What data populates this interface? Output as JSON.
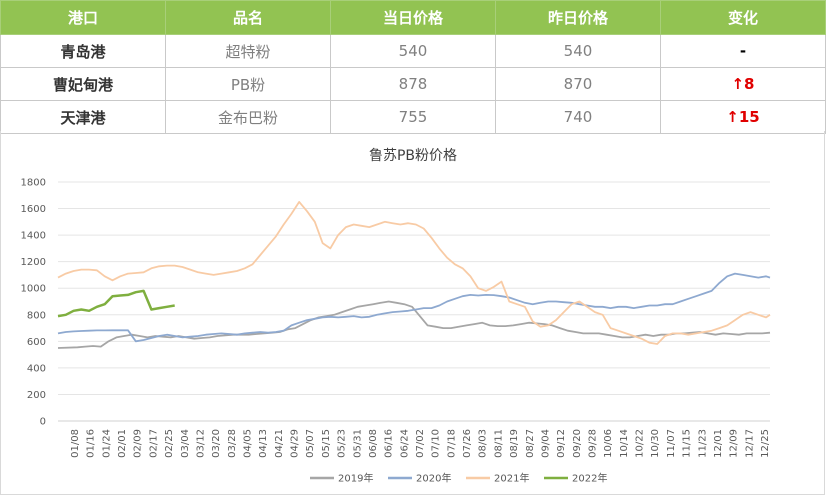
{
  "table": {
    "headers": [
      "港口",
      "品名",
      "当日价格",
      "昨日价格",
      "变化"
    ],
    "rows": [
      {
        "port": "青岛港",
        "product": "超特粉",
        "today": "540",
        "yesterday": "540",
        "change": "-"
      },
      {
        "port": "曹妃甸港",
        "product": "PB粉",
        "today": "878",
        "yesterday": "870",
        "change": "↑8"
      },
      {
        "port": "天津港",
        "product": "金布巴粉",
        "today": "755",
        "yesterday": "740",
        "change": "↑15"
      }
    ]
  },
  "colors": {
    "header_bg": "#92c352",
    "up": "#e00000",
    "s2019": "#a6a6a6",
    "s2020": "#8ea9d0",
    "s2021": "#f8cba5",
    "s2022": "#7faf3f"
  },
  "chart_data": {
    "type": "line",
    "title": "鲁苏PB粉价格",
    "xlabel": "",
    "ylabel": "",
    "ylim": [
      0,
      1800
    ],
    "yticks": [
      "0",
      "200",
      "400",
      "600",
      "800",
      "1000",
      "1200",
      "1400",
      "1600",
      "1800"
    ],
    "xticks": [
      "01/08",
      "01/16",
      "01/24",
      "02/01",
      "02/09",
      "02/17",
      "02/25",
      "03/04",
      "03/12",
      "03/20",
      "03/28",
      "04/05",
      "04/13",
      "04/21",
      "04/29",
      "05/07",
      "05/15",
      "05/23",
      "05/31",
      "06/08",
      "06/16",
      "06/24",
      "07/02",
      "07/10",
      "07/18",
      "07/26",
      "08/03",
      "08/11",
      "08/19",
      "08/27",
      "09/04",
      "09/12",
      "09/20",
      "09/28",
      "10/06",
      "10/14",
      "10/22",
      "10/30",
      "11/07",
      "11/15",
      "11/23",
      "12/01",
      "12/09",
      "12/17",
      "12/25"
    ],
    "legend_position": "bottom",
    "series": [
      {
        "name": "2019年",
        "color": "#a6a6a6",
        "x": [
          0,
          10,
          14,
          18,
          22,
          26,
          30,
          34,
          38,
          42,
          46,
          50,
          54,
          58,
          62,
          66,
          70,
          74,
          78,
          82,
          86,
          90,
          94,
          98,
          102,
          106,
          110,
          114,
          118,
          122,
          126,
          130,
          134,
          138,
          142,
          146,
          150,
          154,
          158,
          162,
          166,
          170,
          174,
          178,
          182,
          186,
          190,
          194,
          198,
          202,
          206,
          210,
          214,
          218,
          222,
          226,
          230,
          234,
          238,
          242,
          246,
          250,
          254,
          258,
          262,
          266,
          270,
          274,
          278,
          282,
          286,
          290,
          294,
          298,
          302,
          306,
          310,
          314,
          318,
          322,
          326,
          330,
          334,
          338,
          342,
          346,
          350,
          354,
          358,
          362,
          366
        ],
        "y": [
          550,
          555,
          560,
          565,
          560,
          600,
          630,
          640,
          650,
          640,
          630,
          640,
          635,
          630,
          640,
          630,
          620,
          625,
          630,
          640,
          645,
          650,
          650,
          650,
          655,
          660,
          665,
          670,
          690,
          700,
          730,
          760,
          780,
          790,
          800,
          820,
          840,
          860,
          870,
          880,
          890,
          900,
          890,
          880,
          860,
          790,
          720,
          710,
          700,
          700,
          710,
          720,
          730,
          740,
          720,
          715,
          715,
          720,
          730,
          740,
          735,
          730,
          720,
          700,
          680,
          670,
          660,
          660,
          660,
          650,
          640,
          630,
          630,
          640,
          650,
          640,
          650,
          650,
          660,
          660,
          665,
          670,
          660,
          650,
          660,
          655,
          650,
          660,
          660,
          660,
          665
        ]
      },
      {
        "name": "2020年",
        "color": "#8ea9d0",
        "x": [
          0,
          4,
          8,
          12,
          16,
          20,
          24,
          28,
          32,
          36,
          40,
          44,
          48,
          52,
          56,
          60,
          64,
          68,
          72,
          76,
          80,
          84,
          88,
          92,
          96,
          100,
          104,
          108,
          112,
          116,
          120,
          124,
          128,
          132,
          136,
          140,
          144,
          148,
          152,
          156,
          160,
          164,
          168,
          172,
          176,
          180,
          184,
          188,
          192,
          196,
          200,
          204,
          208,
          212,
          216,
          220,
          224,
          228,
          232,
          236,
          240,
          244,
          248,
          252,
          256,
          260,
          264,
          268,
          272,
          276,
          280,
          284,
          288,
          292,
          296,
          300,
          304,
          308,
          312,
          316,
          320,
          324,
          328,
          332,
          336,
          340,
          344,
          348,
          352,
          356,
          360,
          364,
          366
        ],
        "y": [
          660,
          670,
          675,
          678,
          680,
          682,
          682,
          683,
          683,
          683,
          600,
          610,
          625,
          640,
          650,
          640,
          630,
          635,
          640,
          650,
          655,
          660,
          655,
          650,
          660,
          665,
          670,
          665,
          670,
          680,
          720,
          740,
          760,
          770,
          780,
          785,
          780,
          785,
          790,
          780,
          785,
          800,
          810,
          820,
          825,
          830,
          840,
          850,
          850,
          870,
          900,
          920,
          940,
          950,
          945,
          950,
          948,
          940,
          930,
          910,
          890,
          880,
          890,
          900,
          900,
          895,
          890,
          880,
          870,
          860,
          860,
          850,
          860,
          860,
          850,
          860,
          870,
          870,
          880,
          880,
          900,
          920,
          940,
          960,
          980,
          1040,
          1090,
          1110,
          1100,
          1090,
          1080,
          1090,
          1080
        ]
      },
      {
        "name": "2021年",
        "color": "#f8cba5",
        "x": [
          0,
          4,
          8,
          12,
          16,
          20,
          24,
          28,
          32,
          36,
          40,
          44,
          48,
          52,
          56,
          60,
          64,
          68,
          72,
          76,
          80,
          84,
          88,
          92,
          96,
          100,
          104,
          108,
          112,
          116,
          120,
          124,
          128,
          132,
          136,
          140,
          144,
          148,
          152,
          156,
          160,
          164,
          168,
          172,
          176,
          180,
          184,
          188,
          192,
          196,
          200,
          204,
          208,
          212,
          216,
          220,
          224,
          228,
          232,
          236,
          240,
          244,
          248,
          252,
          256,
          260,
          264,
          268,
          272,
          276,
          280,
          284,
          288,
          292,
          296,
          300,
          304,
          308,
          312,
          316,
          320,
          324,
          328,
          332,
          336,
          340,
          344,
          348,
          352,
          356,
          360,
          364,
          366
        ],
        "y": [
          1080,
          1110,
          1130,
          1140,
          1140,
          1135,
          1090,
          1060,
          1090,
          1110,
          1115,
          1120,
          1150,
          1165,
          1170,
          1170,
          1160,
          1140,
          1120,
          1110,
          1100,
          1110,
          1120,
          1130,
          1150,
          1180,
          1250,
          1320,
          1390,
          1480,
          1560,
          1650,
          1580,
          1500,
          1340,
          1300,
          1400,
          1460,
          1480,
          1470,
          1460,
          1480,
          1500,
          1490,
          1480,
          1490,
          1480,
          1450,
          1380,
          1300,
          1230,
          1180,
          1150,
          1090,
          1000,
          980,
          1010,
          1050,
          900,
          880,
          860,
          750,
          710,
          720,
          760,
          820,
          880,
          900,
          860,
          820,
          800,
          700,
          680,
          660,
          640,
          620,
          590,
          580,
          640,
          660,
          660,
          650,
          660,
          670,
          680,
          700,
          720,
          760,
          800,
          820,
          800,
          780,
          800
        ]
      },
      {
        "name": "2022年",
        "color": "#7faf3f",
        "x": [
          0,
          4,
          8,
          12,
          16,
          20,
          24,
          28,
          32,
          36,
          40,
          44,
          48,
          52,
          56,
          60
        ],
        "y": [
          790,
          800,
          830,
          840,
          830,
          860,
          880,
          940,
          945,
          950,
          970,
          980,
          840,
          850,
          860,
          870
        ]
      }
    ]
  },
  "legend": [
    "2019年",
    "2020年",
    "2021年",
    "2022年"
  ]
}
